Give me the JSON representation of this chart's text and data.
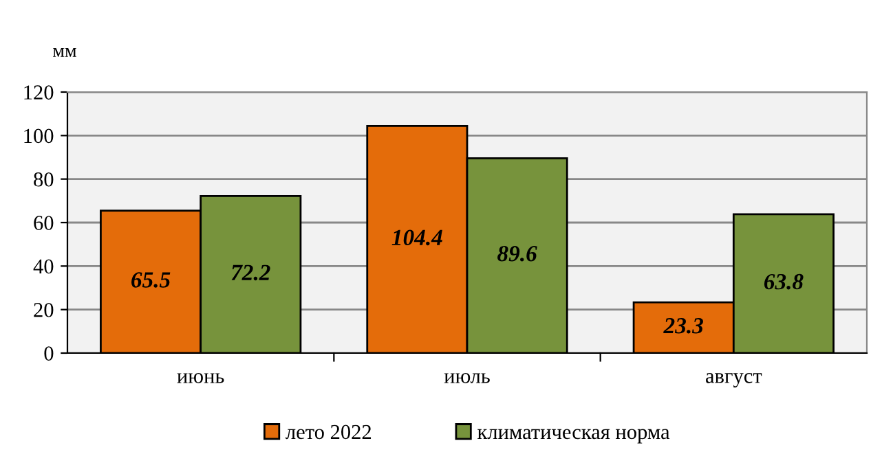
{
  "chart_data": {
    "type": "bar",
    "ylabel": "мм",
    "categories": [
      "июнь",
      "июль",
      "август"
    ],
    "series": [
      {
        "name": "лето 2022",
        "color": "#e46c0a",
        "values": [
          65.5,
          104.4,
          23.3
        ]
      },
      {
        "name": "климатическая норма",
        "color": "#77933c",
        "values": [
          72.2,
          89.6,
          63.8
        ]
      }
    ],
    "ylim": [
      0,
      120
    ],
    "yticks": [
      0,
      20,
      40,
      60,
      80,
      100,
      120
    ],
    "grid": "y",
    "legend": "bottom",
    "data_labels": true
  }
}
